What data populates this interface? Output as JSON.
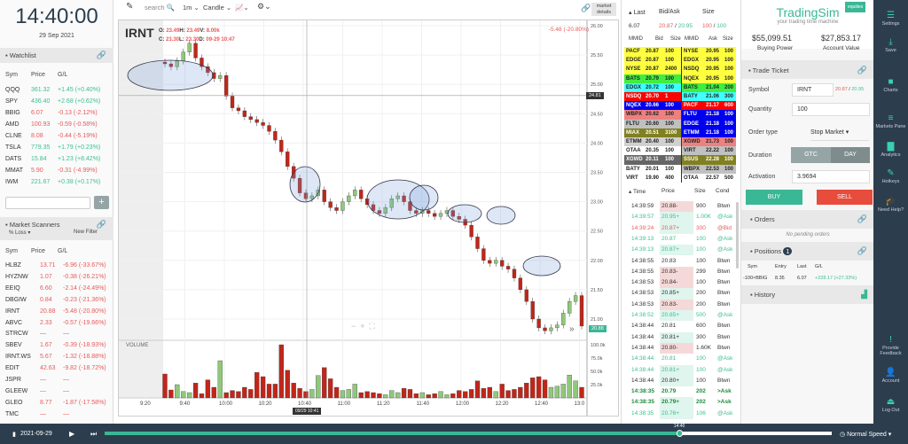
{
  "clock": {
    "time": "14:40:00",
    "date": "29 Sep 2021"
  },
  "watchlist": {
    "title": "Watchlist",
    "headers": [
      "Sym",
      "Price",
      "G/L"
    ],
    "rows": [
      [
        "QQQ",
        "361.32",
        "+1.45 (+0.40%)",
        "up"
      ],
      [
        "SPY",
        "436.40",
        "+2.68 (+0.62%)",
        "up"
      ],
      [
        "BBIG",
        "6.07",
        "-0.13 (-2.12%)",
        "dn"
      ],
      [
        "AMD",
        "100.93",
        "-0.59 (-0.58%)",
        "dn"
      ],
      [
        "CLNE",
        "8.08",
        "-0.44 (-5.19%)",
        "dn"
      ],
      [
        "TSLA",
        "779.35",
        "+1.79 (+0.23%)",
        "up"
      ],
      [
        "DATS",
        "15.84",
        "+1.23 (+8.42%)",
        "up"
      ],
      [
        "MMAT",
        "5.90",
        "-0.31 (-4.99%)",
        "dn"
      ],
      [
        "IWM",
        "221.67",
        "+0.38 (+0.17%)",
        "up"
      ]
    ],
    "add_label": "+"
  },
  "scanners": {
    "title": "Market Scanners",
    "filter": "% Loss",
    "new_filter": "New Filter",
    "headers": [
      "Sym",
      "Price",
      "G/L"
    ],
    "rows": [
      [
        "HLBZ",
        "13.71",
        "-6.96 (-33.67%)"
      ],
      [
        "HYZNW",
        "1.07",
        "-0.38 (-26.21%)"
      ],
      [
        "EEIQ",
        "6.60",
        "-2.14 (-24.49%)"
      ],
      [
        "DBGIW",
        "0.84",
        "-0.23 (-21.36%)"
      ],
      [
        "IRNT",
        "20.88",
        "-5.48 (-20.80%)"
      ],
      [
        "ABVC",
        "2.33",
        "-0.57 (-19.66%)"
      ],
      [
        "STRCW",
        "—",
        "—"
      ],
      [
        "SBEV",
        "1.67",
        "-0.39 (-18.93%)"
      ],
      [
        "IRNT.WS",
        "5.67",
        "-1.32 (-18.88%)"
      ],
      [
        "EDIT",
        "42.63",
        "-9.82 (-18.72%)"
      ],
      [
        "JSPR",
        "—",
        "—"
      ],
      [
        "GLEEW",
        "—",
        "—"
      ],
      [
        "GLEO",
        "8.77",
        "-1.87 (-17.58%)"
      ],
      [
        "TMC",
        "—",
        "—"
      ]
    ]
  },
  "toolbar": {
    "search": "search",
    "interval": "1m",
    "type": "Candle",
    "market_details": "market details"
  },
  "chart": {
    "symbol": "IRNT",
    "o": "23.49",
    "h": "23.49",
    "v": "8.00k",
    "c": "23.30",
    "l": "23.30",
    "d": "09-29 10:47",
    "change": "-5.48 (-20.80%)",
    "crosshair_price": "24.81",
    "crosshair_time": "09/29 10:41",
    "last_price": "20.88",
    "volume_label": "VOLUME"
  },
  "chart_data": {
    "type": "candlestick",
    "price_ticks": [
      "26.00",
      "25.50",
      "25.00",
      "24.50",
      "24.00",
      "23.50",
      "23.00",
      "22.50",
      "22.00",
      "21.50",
      "21.00"
    ],
    "ylim": [
      20.7,
      26.1
    ],
    "volume_ticks": [
      "100.0k",
      "75.0k",
      "50.0k",
      "25.0k"
    ],
    "time_ticks": [
      "9:20",
      "9:40",
      "10:00",
      "10:20",
      "10:40",
      "11:00",
      "11:20",
      "11:40",
      "12:00",
      "12:20",
      "12:40",
      "13:0"
    ],
    "closes": [
      25.35,
      25.3,
      25.4,
      25.55,
      25.7,
      25.45,
      25.3,
      25.2,
      25.1,
      25.15,
      24.8,
      24.6,
      24.55,
      24.45,
      24.4,
      24.35,
      24.3,
      24.2,
      24.05,
      23.85,
      23.6,
      23.4,
      23.15,
      23.05,
      23.1,
      23.2,
      23.0,
      22.9,
      22.85,
      23.0,
      23.1,
      23.2,
      23.05,
      22.95,
      22.85,
      22.8,
      22.9,
      23.05,
      23.1,
      23.0,
      22.85,
      22.8,
      22.85,
      22.8,
      22.75,
      22.8,
      22.85,
      22.75,
      22.7,
      22.6,
      22.4,
      22.2,
      22.0,
      21.95,
      22.0,
      21.9,
      21.85,
      21.7,
      21.5,
      21.3,
      21.0,
      20.85,
      20.8,
      20.85,
      20.9,
      21.1,
      21.3,
      21.4,
      20.88
    ],
    "volumes_k": [
      45,
      15,
      25,
      12,
      10,
      28,
      8,
      34,
      20,
      70,
      10,
      14,
      12,
      20,
      16,
      48,
      40,
      26,
      26,
      100,
      52,
      28,
      18,
      12,
      16,
      42,
      57,
      36,
      20,
      14,
      16,
      26,
      10,
      12,
      10,
      8,
      6,
      14,
      10,
      18,
      16,
      8,
      10,
      6,
      8,
      12,
      6,
      8,
      14,
      12,
      16,
      32,
      18,
      20,
      12,
      26,
      14,
      16,
      20,
      28,
      38,
      40,
      34,
      20,
      22,
      26,
      43,
      32,
      20
    ]
  },
  "level2": {
    "last_label": "Last",
    "bidask_label": "Bid/Ask",
    "size_label": "Size",
    "last": "6.07",
    "bid": "20.87",
    "ask": "20.95",
    "bid_size": "100",
    "ask_size": "100",
    "headers": [
      "MMID",
      "Bid",
      "Size",
      "MMID",
      "Ask",
      "Size"
    ],
    "bids": [
      [
        "PACF",
        "20.87",
        "100",
        "#ffff40"
      ],
      [
        "EDGE",
        "20.87",
        "100",
        "#ffff40"
      ],
      [
        "NYSE",
        "20.87",
        "2400",
        "#ffff40"
      ],
      [
        "BATS",
        "20.79",
        "100",
        "#40ee40"
      ],
      [
        "EDGX",
        "20.72",
        "100",
        "#40ffff"
      ],
      [
        "NSDQ",
        "20.70",
        "1",
        "#ff0000"
      ],
      [
        "NQEX",
        "20.66",
        "100",
        "#0000ee"
      ],
      [
        "WBPX",
        "20.62",
        "100",
        "#ee8080"
      ],
      [
        "FLTU",
        "20.60",
        "100",
        "#c0c0c0"
      ],
      [
        "MIAX",
        "20.51",
        "3100",
        "#808020"
      ],
      [
        "ETMM",
        "20.40",
        "100",
        "#d0d0d0"
      ],
      [
        "OTAA",
        "20.35",
        "100",
        "#ffffff"
      ],
      [
        "XGWD",
        "20.11",
        "100",
        "#666666"
      ],
      [
        "BATY",
        "20.01",
        "100",
        "#ffffff"
      ],
      [
        "VIRT",
        "19.90",
        "400",
        "#ffffff"
      ]
    ],
    "asks": [
      [
        "NYSE",
        "20.95",
        "100",
        "#ffff40"
      ],
      [
        "EDGX",
        "20.95",
        "100",
        "#ffff40"
      ],
      [
        "NSDQ",
        "20.95",
        "100",
        "#ffff40"
      ],
      [
        "NQEX",
        "20.95",
        "100",
        "#ffff40"
      ],
      [
        "BATS",
        "21.04",
        "200",
        "#40ee40"
      ],
      [
        "BATY",
        "21.06",
        "300",
        "#40ffff"
      ],
      [
        "PACF",
        "21.17",
        "600",
        "#ff0000"
      ],
      [
        "FLTU",
        "21.18",
        "100",
        "#0000ee"
      ],
      [
        "EDGE",
        "21.18",
        "100",
        "#0000ee"
      ],
      [
        "ETMM",
        "21.18",
        "100",
        "#0000ee"
      ],
      [
        "XGWD",
        "21.73",
        "100",
        "#ee8080"
      ],
      [
        "VIRT",
        "22.22",
        "100",
        "#c0c0c0"
      ],
      [
        "SSUS",
        "22.28",
        "100",
        "#808020"
      ],
      [
        "WBPX",
        "22.53",
        "100",
        "#c0c0c0"
      ],
      [
        "OTAA",
        "22.57",
        "500",
        "#ffffff"
      ]
    ]
  },
  "time_sales": {
    "headers": [
      "Time",
      "Price",
      "Size",
      "Cond"
    ],
    "rows": [
      [
        "14:39:59",
        "20.88-",
        "900",
        "Btwn"
      ],
      [
        "14:39:57",
        "20.95+",
        "1.00K",
        "@Ask"
      ],
      [
        "14:39:24",
        "20.87+",
        "300",
        "@Bid"
      ],
      [
        "14:39:13",
        "20.87",
        "100",
        "@Ask"
      ],
      [
        "14:39:13",
        "20.87+",
        "100",
        "@Ask"
      ],
      [
        "14:38:55",
        "20.83",
        "100",
        "Btwn"
      ],
      [
        "14:38:55",
        "20.83-",
        "299",
        "Btwn"
      ],
      [
        "14:38:53",
        "20.84-",
        "100",
        "Btwn"
      ],
      [
        "14:38:53",
        "20.85+",
        "200",
        "Btwn"
      ],
      [
        "14:38:53",
        "20.83-",
        "200",
        "Btwn"
      ],
      [
        "14:38:52",
        "20.85+",
        "500",
        "@Ask"
      ],
      [
        "14:38:44",
        "20.81",
        "600",
        "Btwn"
      ],
      [
        "14:38:44",
        "20.81+",
        "300",
        "Btwn"
      ],
      [
        "14:38:44",
        "20.80-",
        "1.60K",
        "Btwn"
      ],
      [
        "14:38:44",
        "20.81",
        "100",
        "@Ask"
      ],
      [
        "14:38:44",
        "20.81+",
        "100",
        "@Ask"
      ],
      [
        "14:38:44",
        "20.80+",
        "100",
        "Btwn"
      ],
      [
        "14:38:35",
        "20.79",
        "202",
        ">Ask"
      ],
      [
        "14:38:35",
        "20.79+",
        "202",
        ">Ask"
      ],
      [
        "14:38:35",
        "20.76+",
        "106",
        "@Ask"
      ]
    ]
  },
  "brand": {
    "name": "TradingSim",
    "tagline": "your trading time machine",
    "badge": "equities"
  },
  "account": {
    "buying_power": "$55,099.51",
    "buying_power_label": "Buying Power",
    "account_value": "$27,853.17",
    "account_value_label": "Account Value"
  },
  "ticket": {
    "title": "Trade Ticket",
    "symbol_label": "Symbol",
    "symbol": "IRNT",
    "bid": "20.87",
    "ask": "20.95",
    "quantity_label": "Quantity",
    "quantity": "100",
    "order_type_label": "Order type",
    "order_type": "Stop Market",
    "duration_label": "Duration",
    "gtc": "GTC",
    "day": "DAY",
    "activation_label": "Activation",
    "activation": "3.9694",
    "buy": "BUY",
    "sell": "SELL"
  },
  "orders": {
    "title": "Orders",
    "empty": "No pending orders"
  },
  "positions": {
    "title": "Positions",
    "count": "1",
    "headers": [
      "Sym",
      "Entry",
      "Last",
      "G/L"
    ],
    "rows": [
      [
        "-100×BBIG",
        "8.35",
        "6.07",
        "+228.17 (+27.33%)"
      ]
    ]
  },
  "history": {
    "title": "History"
  },
  "sidebar": [
    {
      "label": "Settings",
      "icon": "☰"
    },
    {
      "label": "Save",
      "icon": "⤓"
    },
    {
      "label": "Charts",
      "icon": "■"
    },
    {
      "label": "Markets Pane",
      "icon": "≡"
    },
    {
      "label": "Analytics",
      "icon": "▇"
    },
    {
      "label": "Hotkeys",
      "icon": "✎"
    },
    {
      "label": "Need Help?",
      "icon": "🎓"
    },
    {
      "label": "Provide Feedback",
      "icon": "!"
    },
    {
      "label": "Account",
      "icon": "👤"
    },
    {
      "label": "Log Out",
      "icon": "⏏"
    }
  ],
  "playback": {
    "date": "2021-09-29",
    "time": "14:40",
    "progress": 0.79,
    "speed": "Normal Speed"
  },
  "colors": {
    "accent": "#3ab795",
    "up": "#3cbf8f",
    "down": "#e85a5a",
    "sidebar": "#2c3e4e",
    "sell": "#e74c3c"
  }
}
